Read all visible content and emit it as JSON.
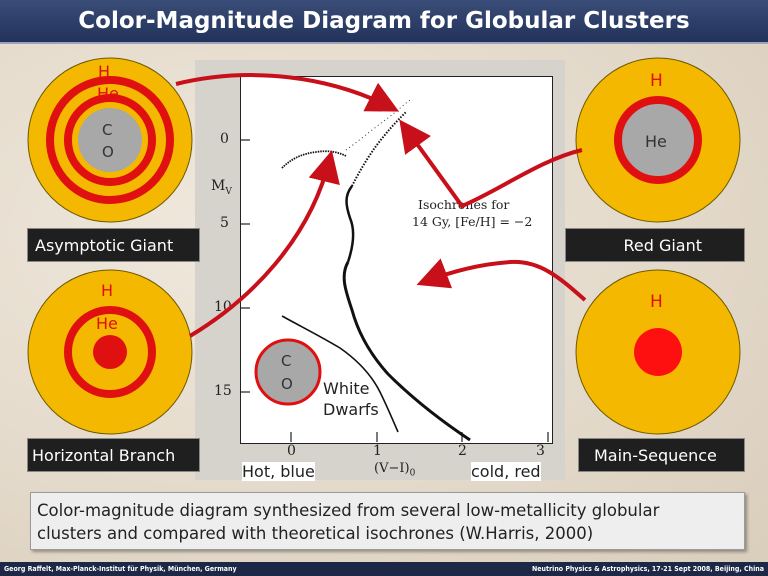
{
  "title": "Color-Magnitude Diagram for Globular Clusters",
  "plot": {
    "y_axis_label": "M",
    "y_axis_subscript": "V",
    "x_axis_label": "(V−I)",
    "x_axis_subscript": "0",
    "y_ticks": [
      "0",
      "5",
      "10",
      "15"
    ],
    "x_ticks": [
      "0",
      "1",
      "2",
      "3"
    ],
    "isochrone_label_line1": "Isochrones for",
    "isochrone_label_line2": "14 Gy, [Fe/H] = −2",
    "x_left_label": "Hot, blue",
    "x_right_label": "cold, red",
    "white_dwarfs_line1": "White",
    "white_dwarfs_line2": "Dwarfs"
  },
  "stars": {
    "asymptotic_giant": {
      "label": "Asymptotic Giant",
      "shell1": "H",
      "shell2": "He",
      "core_line1": "C",
      "core_line2": "O"
    },
    "red_giant": {
      "label": "Red Giant",
      "shell": "H",
      "core": "He"
    },
    "horizontal_branch": {
      "label": "Horizontal Branch",
      "shell1": "H",
      "shell2": "He"
    },
    "main_sequence": {
      "label": "Main-Sequence",
      "shell": "H"
    },
    "white_dwarf_core": {
      "line1": "C",
      "line2": "O"
    }
  },
  "colors": {
    "envelope": "#f5b800",
    "shell_ring": "#e01010",
    "he_core": "#a8a8a8",
    "arrow": "#c8101a",
    "title_bar": "#2b3b66"
  },
  "caption": {
    "line1": "Color-magnitude diagram synthesized from several low-metallicity globular",
    "line2": "clusters and compared with theoretical isochrones (W.Harris, 2000)"
  },
  "footer": {
    "left": "Georg Raffelt, Max-Planck-Institut für Physik, München, Germany",
    "right": "Neutrino Physics & Astrophysics, 17-21 Sept 2008, Beijing, China"
  }
}
